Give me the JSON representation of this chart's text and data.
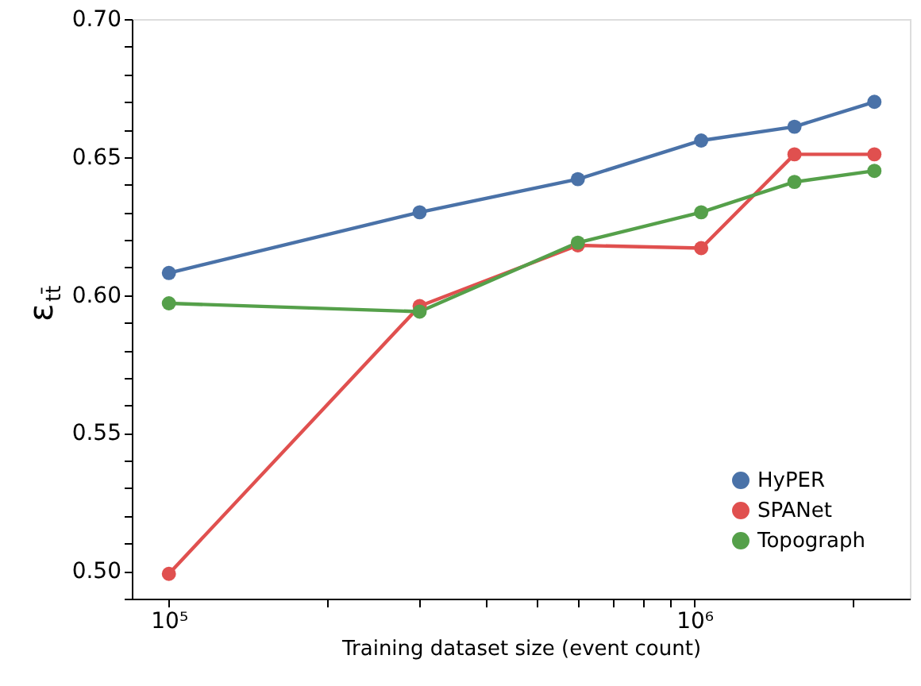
{
  "chart_data": {
    "type": "line",
    "xlabel": "Training dataset size (event count)",
    "ylabel": "ε$_{tt̄}$",
    "log": "x",
    "x": [
      100000,
      300000,
      600000,
      1030000,
      1550000,
      2200000
    ],
    "series": [
      {
        "name": "HyPER",
        "color": "#4a72a8",
        "values": [
          0.608,
          0.63,
          0.642,
          0.656,
          0.661,
          0.67
        ]
      },
      {
        "name": "SPANet",
        "color": "#e0504f",
        "values": [
          0.499,
          0.596,
          0.618,
          0.617,
          0.651,
          0.651
        ]
      },
      {
        "name": "Topograph",
        "color": "#55a04a",
        "values": [
          0.597,
          0.594,
          0.619,
          0.63,
          0.641,
          0.645
        ]
      }
    ],
    "xlim": [
      85000,
      2570000
    ],
    "ylim": [
      0.49,
      0.7
    ],
    "xticks": [
      {
        "value": 100000,
        "label": "10⁵"
      },
      {
        "value": 200000,
        "label": null
      },
      {
        "value": 300000,
        "label": null
      },
      {
        "value": 400000,
        "label": null
      },
      {
        "value": 500000,
        "label": null
      },
      {
        "value": 600000,
        "label": null
      },
      {
        "value": 700000,
        "label": null
      },
      {
        "value": 800000,
        "label": null
      },
      {
        "value": 900000,
        "label": null
      },
      {
        "value": 1000000,
        "label": "10⁶"
      },
      {
        "value": 2000000,
        "label": null
      }
    ],
    "yticks": [
      {
        "value": 0.49,
        "label": null
      },
      {
        "value": 0.5,
        "label": "0.50"
      },
      {
        "value": 0.51,
        "label": null
      },
      {
        "value": 0.52,
        "label": null
      },
      {
        "value": 0.53,
        "label": null
      },
      {
        "value": 0.54,
        "label": null
      },
      0.55,
      {
        "value": 0.56,
        "label": null
      },
      {
        "value": 0.57,
        "label": null
      },
      {
        "value": 0.58,
        "label": null
      },
      {
        "value": 0.59,
        "label": null
      },
      {
        "value": 0.6,
        "label": "0.60"
      },
      {
        "value": 0.61,
        "label": null
      },
      {
        "value": 0.62,
        "label": null
      },
      {
        "value": 0.63,
        "label": null
      },
      {
        "value": 0.64,
        "label": null
      },
      0.65,
      {
        "value": 0.66,
        "label": null
      },
      {
        "value": 0.67,
        "label": null
      },
      {
        "value": 0.68,
        "label": null
      },
      {
        "value": 0.69,
        "label": null
      },
      {
        "value": 0.7,
        "label": "0.70"
      }
    ],
    "marker": "circle",
    "line_style": "solid",
    "grid": false,
    "legend": "bottom right"
  }
}
